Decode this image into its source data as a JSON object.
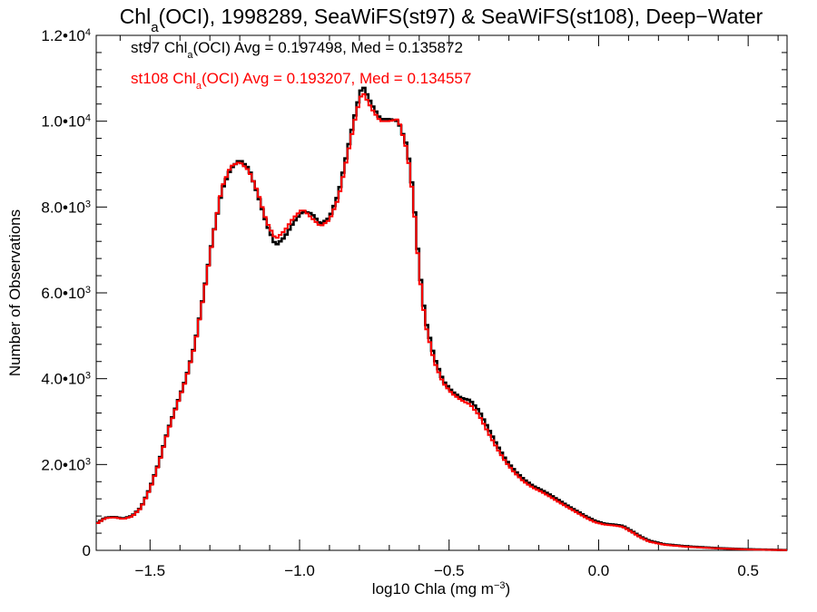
{
  "chart_data": {
    "type": "line",
    "title": {
      "prefix": "Chl",
      "sub": "a",
      "suffix": "(OCI), 1998289, SeaWiFS(st97) & SeaWiFS(st108), Deep−Water"
    },
    "xlabel": {
      "main": "log10 Chla (mg m",
      "sup": "−3",
      "end": ")"
    },
    "ylabel": "Number of Observations",
    "xlim": [
      -1.68,
      0.63
    ],
    "ylim": [
      0,
      12000
    ],
    "x_ticks": [
      {
        "value": -1.5,
        "label": "−1.5"
      },
      {
        "value": -1.0,
        "label": "−1.0"
      },
      {
        "value": -0.5,
        "label": "−0.5"
      },
      {
        "value": 0.0,
        "label": "0.0"
      },
      {
        "value": 0.5,
        "label": "0.5"
      }
    ],
    "y_ticks": [
      {
        "value": 0,
        "mant": "0",
        "exp": ""
      },
      {
        "value": 2000,
        "mant": "2.0•10",
        "exp": "3"
      },
      {
        "value": 4000,
        "mant": "4.0•10",
        "exp": "3"
      },
      {
        "value": 6000,
        "mant": "6.0•10",
        "exp": "3"
      },
      {
        "value": 8000,
        "mant": "8.0•10",
        "exp": "3"
      },
      {
        "value": 10000,
        "mant": "1.0•10",
        "exp": "4"
      },
      {
        "value": 12000,
        "mant": "1.2•10",
        "exp": "4"
      }
    ],
    "annotations": [
      {
        "prefix": "st97 Chl",
        "sub": "a",
        "suffix": "(OCI) Avg = 0.197498, Med = 0.135872",
        "color": "#000000"
      },
      {
        "prefix": "st108 Chl",
        "sub": "a",
        "suffix": "(OCI) Avg = 0.193207, Med = 0.134557",
        "color": "#ff0000"
      }
    ],
    "series": [
      {
        "color": "#000000",
        "step": "histogram",
        "points": [
          [
            -1.68,
            620
          ],
          [
            -1.65,
            760
          ],
          [
            -1.62,
            780
          ],
          [
            -1.59,
            740
          ],
          [
            -1.56,
            800
          ],
          [
            -1.53,
            1000
          ],
          [
            -1.5,
            1450
          ],
          [
            -1.47,
            2050
          ],
          [
            -1.44,
            2800
          ],
          [
            -1.41,
            3400
          ],
          [
            -1.38,
            4000
          ],
          [
            -1.35,
            4800
          ],
          [
            -1.32,
            6000
          ],
          [
            -1.29,
            7300
          ],
          [
            -1.26,
            8400
          ],
          [
            -1.23,
            8900
          ],
          [
            -1.2,
            9100
          ],
          [
            -1.17,
            8900
          ],
          [
            -1.14,
            8300
          ],
          [
            -1.11,
            7600
          ],
          [
            -1.08,
            7100
          ],
          [
            -1.05,
            7300
          ],
          [
            -1.02,
            7650
          ],
          [
            -0.99,
            7900
          ],
          [
            -0.96,
            7850
          ],
          [
            -0.93,
            7600
          ],
          [
            -0.9,
            7750
          ],
          [
            -0.87,
            8300
          ],
          [
            -0.84,
            9300
          ],
          [
            -0.81,
            10300
          ],
          [
            -0.79,
            10850
          ],
          [
            -0.76,
            10400
          ],
          [
            -0.73,
            10050
          ],
          [
            -0.7,
            10050
          ],
          [
            -0.67,
            10000
          ],
          [
            -0.64,
            9400
          ],
          [
            -0.62,
            8300
          ],
          [
            -0.6,
            6600
          ],
          [
            -0.58,
            5400
          ],
          [
            -0.55,
            4500
          ],
          [
            -0.52,
            3950
          ],
          [
            -0.49,
            3700
          ],
          [
            -0.46,
            3550
          ],
          [
            -0.43,
            3500
          ],
          [
            -0.4,
            3250
          ],
          [
            -0.37,
            2850
          ],
          [
            -0.34,
            2450
          ],
          [
            -0.31,
            2100
          ],
          [
            -0.28,
            1850
          ],
          [
            -0.25,
            1650
          ],
          [
            -0.22,
            1500
          ],
          [
            -0.19,
            1400
          ],
          [
            -0.16,
            1280
          ],
          [
            -0.13,
            1150
          ],
          [
            -0.1,
            1020
          ],
          [
            -0.07,
            900
          ],
          [
            -0.04,
            780
          ],
          [
            -0.01,
            680
          ],
          [
            0.02,
            620
          ],
          [
            0.05,
            600
          ],
          [
            0.08,
            570
          ],
          [
            0.11,
            450
          ],
          [
            0.14,
            320
          ],
          [
            0.17,
            220
          ],
          [
            0.22,
            140
          ],
          [
            0.3,
            90
          ],
          [
            0.4,
            50
          ],
          [
            0.5,
            25
          ],
          [
            0.6,
            10
          ],
          [
            0.63,
            5
          ]
        ]
      },
      {
        "color": "#ff0000",
        "step": "histogram",
        "points": [
          [
            -1.68,
            610
          ],
          [
            -1.65,
            750
          ],
          [
            -1.62,
            770
          ],
          [
            -1.59,
            730
          ],
          [
            -1.56,
            790
          ],
          [
            -1.53,
            990
          ],
          [
            -1.5,
            1430
          ],
          [
            -1.47,
            2030
          ],
          [
            -1.44,
            2780
          ],
          [
            -1.41,
            3380
          ],
          [
            -1.38,
            3980
          ],
          [
            -1.35,
            4780
          ],
          [
            -1.32,
            5980
          ],
          [
            -1.29,
            7280
          ],
          [
            -1.26,
            8450
          ],
          [
            -1.23,
            8950
          ],
          [
            -1.2,
            9050
          ],
          [
            -1.17,
            8850
          ],
          [
            -1.14,
            8350
          ],
          [
            -1.11,
            7650
          ],
          [
            -1.08,
            7250
          ],
          [
            -1.05,
            7450
          ],
          [
            -1.02,
            7750
          ],
          [
            -0.99,
            7950
          ],
          [
            -0.96,
            7750
          ],
          [
            -0.93,
            7550
          ],
          [
            -0.9,
            7700
          ],
          [
            -0.87,
            8200
          ],
          [
            -0.84,
            9200
          ],
          [
            -0.81,
            10200
          ],
          [
            -0.79,
            10700
          ],
          [
            -0.76,
            10300
          ],
          [
            -0.73,
            10000
          ],
          [
            -0.7,
            10000
          ],
          [
            -0.67,
            10050
          ],
          [
            -0.64,
            9300
          ],
          [
            -0.62,
            8200
          ],
          [
            -0.6,
            6500
          ],
          [
            -0.58,
            5300
          ],
          [
            -0.55,
            4400
          ],
          [
            -0.52,
            3900
          ],
          [
            -0.49,
            3650
          ],
          [
            -0.46,
            3500
          ],
          [
            -0.43,
            3400
          ],
          [
            -0.4,
            3150
          ],
          [
            -0.37,
            2750
          ],
          [
            -0.34,
            2380
          ],
          [
            -0.31,
            2050
          ],
          [
            -0.28,
            1800
          ],
          [
            -0.25,
            1600
          ],
          [
            -0.22,
            1460
          ],
          [
            -0.19,
            1360
          ],
          [
            -0.16,
            1240
          ],
          [
            -0.13,
            1110
          ],
          [
            -0.1,
            990
          ],
          [
            -0.07,
            870
          ],
          [
            -0.04,
            750
          ],
          [
            -0.01,
            650
          ],
          [
            0.02,
            600
          ],
          [
            0.05,
            580
          ],
          [
            0.08,
            550
          ],
          [
            0.11,
            430
          ],
          [
            0.14,
            300
          ],
          [
            0.17,
            200
          ],
          [
            0.22,
            130
          ],
          [
            0.3,
            80
          ],
          [
            0.4,
            45
          ],
          [
            0.5,
            20
          ],
          [
            0.6,
            8
          ],
          [
            0.63,
            4
          ]
        ]
      }
    ]
  }
}
